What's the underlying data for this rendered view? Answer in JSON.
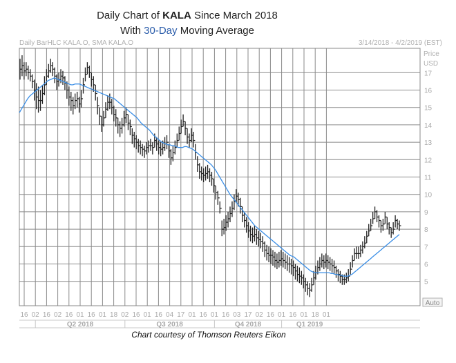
{
  "header": {
    "title_prefix": "Daily Chart of ",
    "title_ticker": "KALA",
    "title_suffix": " Since March 2018",
    "subtitle_prefix": "With ",
    "subtitle_highlight": "30-Day",
    "subtitle_suffix": " Moving Average",
    "highlight_color": "#2a5caa"
  },
  "info": {
    "left": "Daily BarHLC KALA.O, SMA KALA.O",
    "right": "3/14/2018 - 4/2/2019 (EST)",
    "price_label": "Price",
    "currency_label": "USD",
    "auto_button": "Auto"
  },
  "credit": "Chart courtesy of Thomson Reuters Eikon",
  "chart_data": {
    "type": "line",
    "subtype": "daily OHLC bar chart with simple moving average",
    "y_ticks": [
      5,
      6,
      7,
      8,
      9,
      10,
      11,
      12,
      13,
      14,
      15,
      16,
      17
    ],
    "ylim": [
      3.6,
      18.4
    ],
    "x_tick_labels": [
      "16",
      "02",
      "16",
      "02",
      "16",
      "01",
      "16",
      "01",
      "18",
      "02",
      "16",
      "01",
      "16",
      "04",
      "17",
      "01",
      "16",
      "01",
      "16",
      "03",
      "17",
      "02",
      "16",
      "01",
      "16",
      "01",
      "18",
      "01"
    ],
    "quarters": [
      "Q2 2018",
      "Q3 2018",
      "Q4 2018",
      "Q1 2019"
    ],
    "grid": true,
    "colors": {
      "bars": "#222222",
      "sma": "#3a8ee6",
      "grid": "#8a8a8a"
    },
    "series": [
      {
        "name": "KALA.O",
        "kind": "bar_hlc",
        "high": [
          17.8,
          18.0,
          17.6,
          17.6,
          17.4,
          17.2,
          16.9,
          16.6,
          16.4,
          16.2,
          16.0,
          16.3,
          16.8,
          17.2,
          17.5,
          17.8,
          17.6,
          17.3,
          16.9,
          17.0,
          17.2,
          17.1,
          16.8,
          16.5,
          16.2,
          15.9,
          15.6,
          15.8,
          15.9,
          15.6,
          16.0,
          16.7,
          17.3,
          17.6,
          17.4,
          17.0,
          16.8,
          16.3,
          15.6,
          15.0,
          14.5,
          14.8,
          15.3,
          15.7,
          15.8,
          15.5,
          15.1,
          14.9,
          14.4,
          14.2,
          14.4,
          14.8,
          15.0,
          14.6,
          14.3,
          13.8,
          13.6,
          13.4,
          13.2,
          13.1,
          12.9,
          12.8,
          13.0,
          13.1,
          13.2,
          13.0,
          13.5,
          13.3,
          13.1,
          13.0,
          13.1,
          13.3,
          13.4,
          12.9,
          12.6,
          12.8,
          13.1,
          13.5,
          13.9,
          14.3,
          14.6,
          14.2,
          13.8,
          13.5,
          13.8,
          13.6,
          12.9,
          12.2,
          11.8,
          11.6,
          11.5,
          11.6,
          11.7,
          11.5,
          11.3,
          10.9,
          10.5,
          10.2,
          9.6,
          8.5,
          8.6,
          8.8,
          9.0,
          9.3,
          9.6,
          10.0,
          10.3,
          10.1,
          9.8,
          9.3,
          9.0,
          8.7,
          8.4,
          8.2,
          8.1,
          8.2,
          8.0,
          7.9,
          7.8,
          7.6,
          7.3,
          7.1,
          7.0,
          6.9,
          6.8,
          6.7,
          6.6,
          6.7,
          6.8,
          6.7,
          6.6,
          6.5,
          6.4,
          6.3,
          6.2,
          6.0,
          5.9,
          5.8,
          5.6,
          5.4,
          5.2,
          5.0,
          4.9,
          5.2,
          5.6,
          5.9,
          6.2,
          6.4,
          6.6,
          6.5,
          6.6,
          6.5,
          6.4,
          6.3,
          6.2,
          5.9,
          5.7,
          5.6,
          5.4,
          5.4,
          5.5,
          5.7,
          6.1,
          6.5,
          6.9,
          7.0,
          7.0,
          7.1,
          7.3,
          7.6,
          7.9,
          8.3,
          8.6,
          9.0,
          9.3,
          9.1,
          8.8,
          8.5,
          8.6,
          9.0,
          8.7,
          8.4,
          8.1,
          8.4,
          8.8,
          8.6,
          8.5
        ],
        "low": [
          16.6,
          16.8,
          16.6,
          16.8,
          16.6,
          16.5,
          16.1,
          15.4,
          14.9,
          14.7,
          14.8,
          15.2,
          15.7,
          16.3,
          16.7,
          17.0,
          16.8,
          16.4,
          16.0,
          16.2,
          16.4,
          16.3,
          16.0,
          15.5,
          15.1,
          14.8,
          14.6,
          14.9,
          15.0,
          14.7,
          15.0,
          15.8,
          16.5,
          16.9,
          16.7,
          16.2,
          15.9,
          15.4,
          14.6,
          14.0,
          13.6,
          13.9,
          14.4,
          14.8,
          14.9,
          14.6,
          14.2,
          13.9,
          13.5,
          13.3,
          13.5,
          13.9,
          14.1,
          13.7,
          13.4,
          12.9,
          12.7,
          12.6,
          12.4,
          12.3,
          12.2,
          12.1,
          12.3,
          12.4,
          12.5,
          12.3,
          12.7,
          12.5,
          12.3,
          12.2,
          12.3,
          12.5,
          12.6,
          12.1,
          11.7,
          11.9,
          12.3,
          12.7,
          13.1,
          13.5,
          13.9,
          13.4,
          12.9,
          12.7,
          13.0,
          12.7,
          12.0,
          11.3,
          10.9,
          10.8,
          10.7,
          10.8,
          10.9,
          10.7,
          10.5,
          10.1,
          9.7,
          9.4,
          8.9,
          7.6,
          7.7,
          7.9,
          8.1,
          8.4,
          8.7,
          9.1,
          9.5,
          9.3,
          8.9,
          8.4,
          8.1,
          7.8,
          7.5,
          7.3,
          7.2,
          7.3,
          7.1,
          7.0,
          6.9,
          6.7,
          6.4,
          6.2,
          6.1,
          6.0,
          5.9,
          5.8,
          5.7,
          5.8,
          5.9,
          5.8,
          5.7,
          5.6,
          5.5,
          5.4,
          5.3,
          5.1,
          5.0,
          4.9,
          4.8,
          4.6,
          4.4,
          4.2,
          4.1,
          4.4,
          4.8,
          5.1,
          5.4,
          5.6,
          5.8,
          5.7,
          5.8,
          5.7,
          5.6,
          5.5,
          5.4,
          5.2,
          5.0,
          4.9,
          4.8,
          4.8,
          4.9,
          5.0,
          5.4,
          5.8,
          6.2,
          6.3,
          6.3,
          6.4,
          6.6,
          6.9,
          7.2,
          7.6,
          7.9,
          8.3,
          8.6,
          8.4,
          8.1,
          7.8,
          7.9,
          8.3,
          8.0,
          7.7,
          7.5,
          7.7,
          8.1,
          8.0,
          7.9
        ],
        "close": [
          17.2,
          17.4,
          17.1,
          17.2,
          17.0,
          16.8,
          16.5,
          16.0,
          15.6,
          15.4,
          15.4,
          15.8,
          16.3,
          16.8,
          17.1,
          17.4,
          17.2,
          16.8,
          16.5,
          16.6,
          16.8,
          16.7,
          16.4,
          16.0,
          15.6,
          15.4,
          15.1,
          15.4,
          15.5,
          15.2,
          15.5,
          16.3,
          16.9,
          17.3,
          17.0,
          16.6,
          16.3,
          15.8,
          15.1,
          14.5,
          14.0,
          14.4,
          14.9,
          15.3,
          15.3,
          15.0,
          14.6,
          14.4,
          14.0,
          13.8,
          14.0,
          14.4,
          14.6,
          14.1,
          13.9,
          13.4,
          13.2,
          13.0,
          12.8,
          12.7,
          12.6,
          12.5,
          12.7,
          12.8,
          12.8,
          12.7,
          13.1,
          12.9,
          12.7,
          12.6,
          12.7,
          12.9,
          13.0,
          12.5,
          12.1,
          12.4,
          12.7,
          13.1,
          13.5,
          13.9,
          14.2,
          13.8,
          13.3,
          13.1,
          13.4,
          13.1,
          12.4,
          11.7,
          11.3,
          11.2,
          11.1,
          11.2,
          11.3,
          11.1,
          10.9,
          10.5,
          10.1,
          9.8,
          9.2,
          8.0,
          8.1,
          8.4,
          8.6,
          8.9,
          9.2,
          9.6,
          9.9,
          9.7,
          9.3,
          8.8,
          8.5,
          8.2,
          7.9,
          7.7,
          7.6,
          7.7,
          7.5,
          7.4,
          7.3,
          7.2,
          6.8,
          6.6,
          6.5,
          6.5,
          6.4,
          6.2,
          6.1,
          6.2,
          6.3,
          6.2,
          6.1,
          6.0,
          6.0,
          5.9,
          5.8,
          5.6,
          5.4,
          5.3,
          5.2,
          5.0,
          4.8,
          4.6,
          4.5,
          4.8,
          5.2,
          5.5,
          5.8,
          6.0,
          6.2,
          6.1,
          6.2,
          6.1,
          6.0,
          5.9,
          5.8,
          5.6,
          5.4,
          5.3,
          5.1,
          5.1,
          5.2,
          5.3,
          5.7,
          6.2,
          6.6,
          6.6,
          6.6,
          6.8,
          7.0,
          7.2,
          7.6,
          7.9,
          8.2,
          8.6,
          9.0,
          8.7,
          8.5,
          8.2,
          8.3,
          8.7,
          8.3,
          8.1,
          7.8,
          8.0,
          8.5,
          8.3,
          8.2
        ]
      },
      {
        "name": "SMA",
        "kind": "line",
        "period": 30,
        "values": [
          14.7,
          14.9,
          15.1,
          15.3,
          15.5,
          15.65,
          15.75,
          15.85,
          15.95,
          16.05,
          16.15,
          16.25,
          16.35,
          16.45,
          16.55,
          16.6,
          16.65,
          16.7,
          16.65,
          16.6,
          16.55,
          16.5,
          16.45,
          16.4,
          16.35,
          16.3,
          16.3,
          16.35,
          16.35,
          16.35,
          16.3,
          16.25,
          16.2,
          16.15,
          16.1,
          16.05,
          16.0,
          15.95,
          15.9,
          15.85,
          15.8,
          15.75,
          15.7,
          15.65,
          15.6,
          15.55,
          15.5,
          15.4,
          15.3,
          15.2,
          15.1,
          15.0,
          14.9,
          14.8,
          14.7,
          14.6,
          14.5,
          14.4,
          14.25,
          14.1,
          14.0,
          13.9,
          13.8,
          13.7,
          13.55,
          13.4,
          13.3,
          13.2,
          13.1,
          13.0,
          12.95,
          12.9,
          12.85,
          12.85,
          12.8,
          12.8,
          12.75,
          12.7,
          12.7,
          12.7,
          12.75,
          12.75,
          12.7,
          12.65,
          12.6,
          12.5,
          12.4,
          12.3,
          12.2,
          12.1,
          12.0,
          11.9,
          11.8,
          11.7,
          11.55,
          11.4,
          11.2,
          11.0,
          10.8,
          10.6,
          10.4,
          10.2,
          10.0,
          9.85,
          9.7,
          9.55,
          9.4,
          9.25,
          9.1,
          8.95,
          8.8,
          8.65,
          8.5,
          8.35,
          8.2,
          8.1,
          8.0,
          7.9,
          7.8,
          7.7,
          7.6,
          7.5,
          7.4,
          7.3,
          7.2,
          7.1,
          7.0,
          6.9,
          6.8,
          6.7,
          6.6,
          6.5,
          6.45,
          6.4,
          6.3,
          6.2,
          6.1,
          6.0,
          5.9,
          5.8,
          5.7,
          5.6,
          5.55,
          5.5,
          5.5,
          5.5,
          5.5,
          5.5,
          5.5,
          5.5,
          5.5,
          5.45,
          5.45,
          5.4,
          5.4,
          5.35,
          5.35,
          5.3,
          5.3,
          5.3,
          5.35,
          5.4,
          5.5,
          5.6,
          5.7,
          5.8,
          5.9,
          6.0,
          6.1,
          6.2,
          6.3,
          6.4,
          6.5,
          6.6,
          6.7,
          6.8,
          6.9,
          7.0,
          7.1,
          7.2,
          7.3,
          7.4,
          7.5,
          7.6,
          7.7
        ]
      }
    ]
  }
}
